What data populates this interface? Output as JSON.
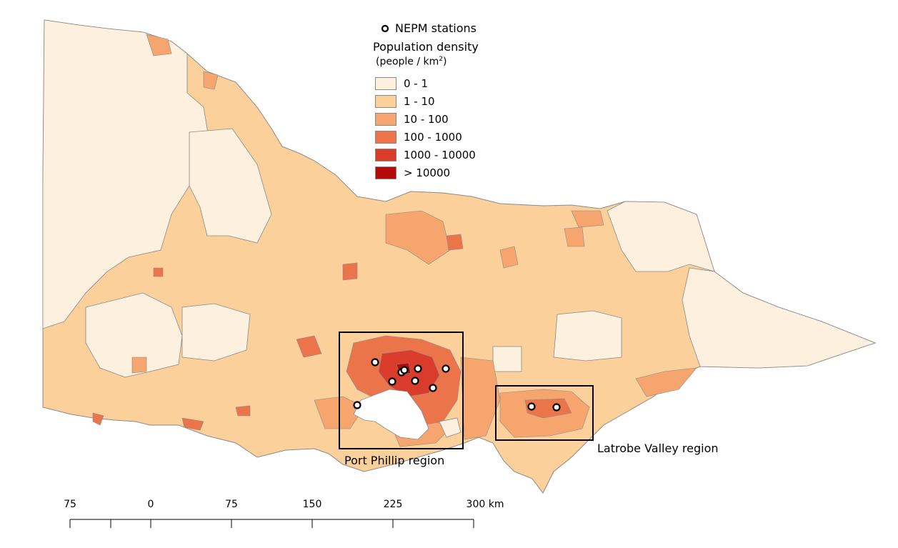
{
  "legend": {
    "stations_label": "NEPM stations",
    "density_title": "Population density",
    "density_units": "(people / km",
    "density_units_sup": "2",
    "density_units_close": ")",
    "classes": [
      {
        "label": "0 - 1",
        "color": "#fdf0de"
      },
      {
        "label": "1 - 10",
        "color": "#fbd09a"
      },
      {
        "label": "10 - 100",
        "color": "#f5a56d"
      },
      {
        "label": "100 - 1000",
        "color": "#ec744b"
      },
      {
        "label": "1000 - 10000",
        "color": "#d93c2b"
      },
      {
        "label": "> 10000",
        "color": "#b40a0a"
      }
    ]
  },
  "regions": {
    "port_phillip": "Port Phillip region",
    "latrobe_valley": "Latrobe Valley region"
  },
  "scale_bar": {
    "ticks": [
      "75",
      "0",
      "75",
      "150",
      "225",
      "300 km"
    ]
  }
}
